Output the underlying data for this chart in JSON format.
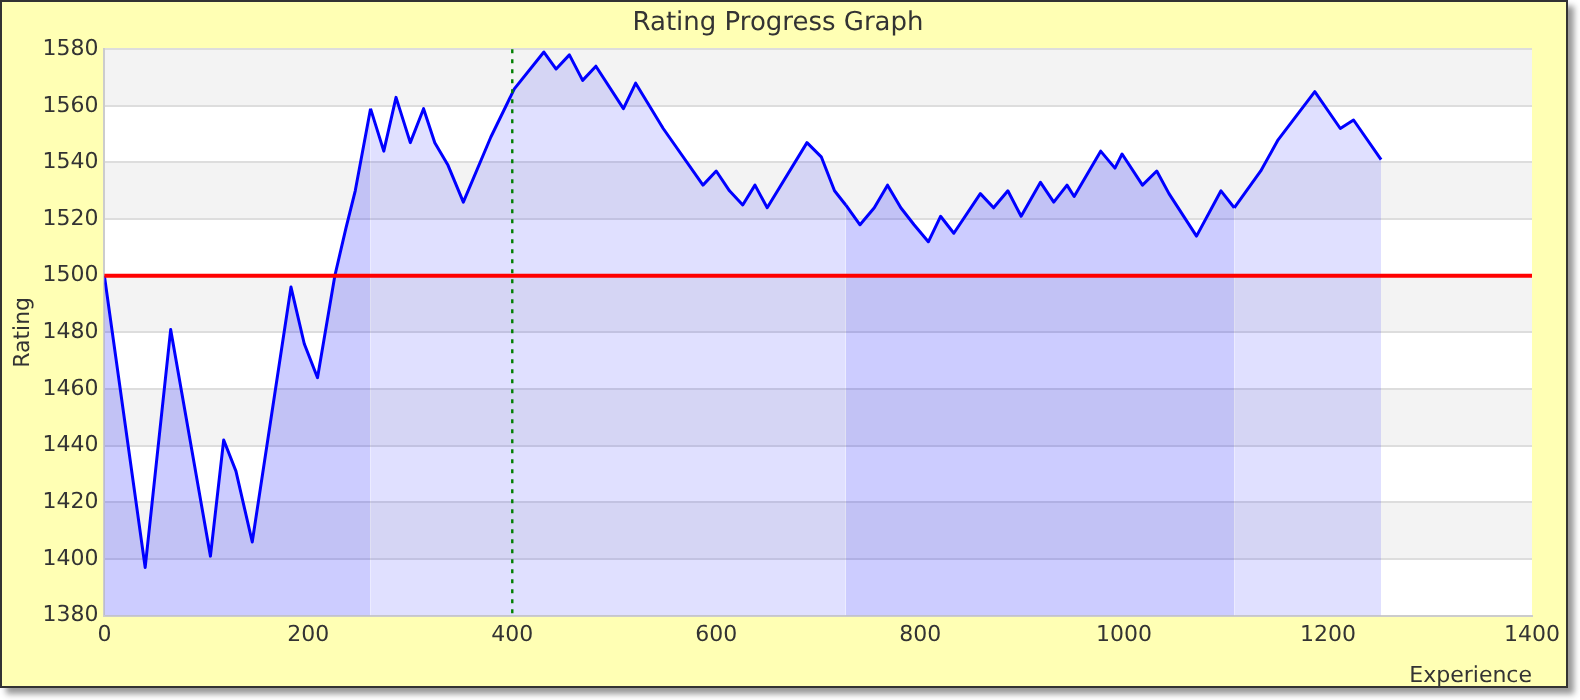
{
  "chart_data": {
    "type": "area",
    "title": "Rating Progress Graph",
    "xlabel": "Experience",
    "ylabel": "Rating",
    "series": [
      {
        "color": "#0000ff",
        "x": [
          0,
          40,
          65,
          104,
          117,
          129,
          145,
          183,
          196,
          209,
          226,
          237,
          246,
          261
        ],
        "values": [
          1500,
          1397,
          1481,
          1401,
          1442,
          1431,
          1406,
          1496,
          1476,
          1464,
          1500,
          1517,
          1530,
          1559
        ]
      },
      {
        "color": "#0000ff",
        "x": [
          261,
          274,
          286,
          300,
          313,
          324,
          337,
          352,
          379,
          402,
          431,
          443,
          456,
          469,
          482,
          509,
          521,
          548,
          587,
          600,
          613,
          626,
          638,
          650,
          689,
          703,
          716,
          727
        ],
        "values": [
          1559,
          1544,
          1563,
          1547,
          1559,
          1547,
          1539,
          1526,
          1549,
          1566,
          1579,
          1573,
          1578,
          1569,
          1574,
          1559,
          1568,
          1552,
          1532,
          1537,
          1530,
          1525,
          1532,
          1524,
          1547,
          1542,
          1530,
          1525
        ]
      },
      {
        "color": "#0000ff",
        "x": [
          727,
          741,
          755,
          768,
          781,
          794,
          808,
          820,
          833,
          859,
          872,
          886,
          899,
          918,
          931,
          944,
          951,
          977,
          991,
          998,
          1018,
          1032,
          1044,
          1071,
          1095,
          1108
        ],
        "values": [
          1525,
          1518,
          1524,
          1532,
          1524,
          1518,
          1512,
          1521,
          1515,
          1529,
          1524,
          1530,
          1521,
          1533,
          1526,
          1532,
          1528,
          1544,
          1538,
          1543,
          1532,
          1537,
          1529,
          1514,
          1530,
          1524
        ]
      },
      {
        "color": "#0000ff",
        "x": [
          1108,
          1134,
          1151,
          1187,
          1212,
          1225,
          1252
        ],
        "values": [
          1524,
          1537,
          1548,
          1565,
          1552,
          1555,
          1541
        ]
      }
    ],
    "xlim": [
      0,
      1400
    ],
    "xticks": [
      0,
      200,
      400,
      600,
      800,
      1000,
      1200,
      1400
    ],
    "ylim": [
      1380,
      1580
    ],
    "yticks": [
      1380,
      1400,
      1420,
      1440,
      1460,
      1480,
      1500,
      1520,
      1540,
      1560,
      1580
    ],
    "ref_lines": [
      {
        "axis": "y",
        "value": 1500,
        "color": "#ff0000",
        "line_style": "solid"
      },
      {
        "axis": "x",
        "value": 400,
        "color": "#008000",
        "line_style": "dotted"
      }
    ],
    "grid": "y",
    "legend": false,
    "marker": "none"
  }
}
